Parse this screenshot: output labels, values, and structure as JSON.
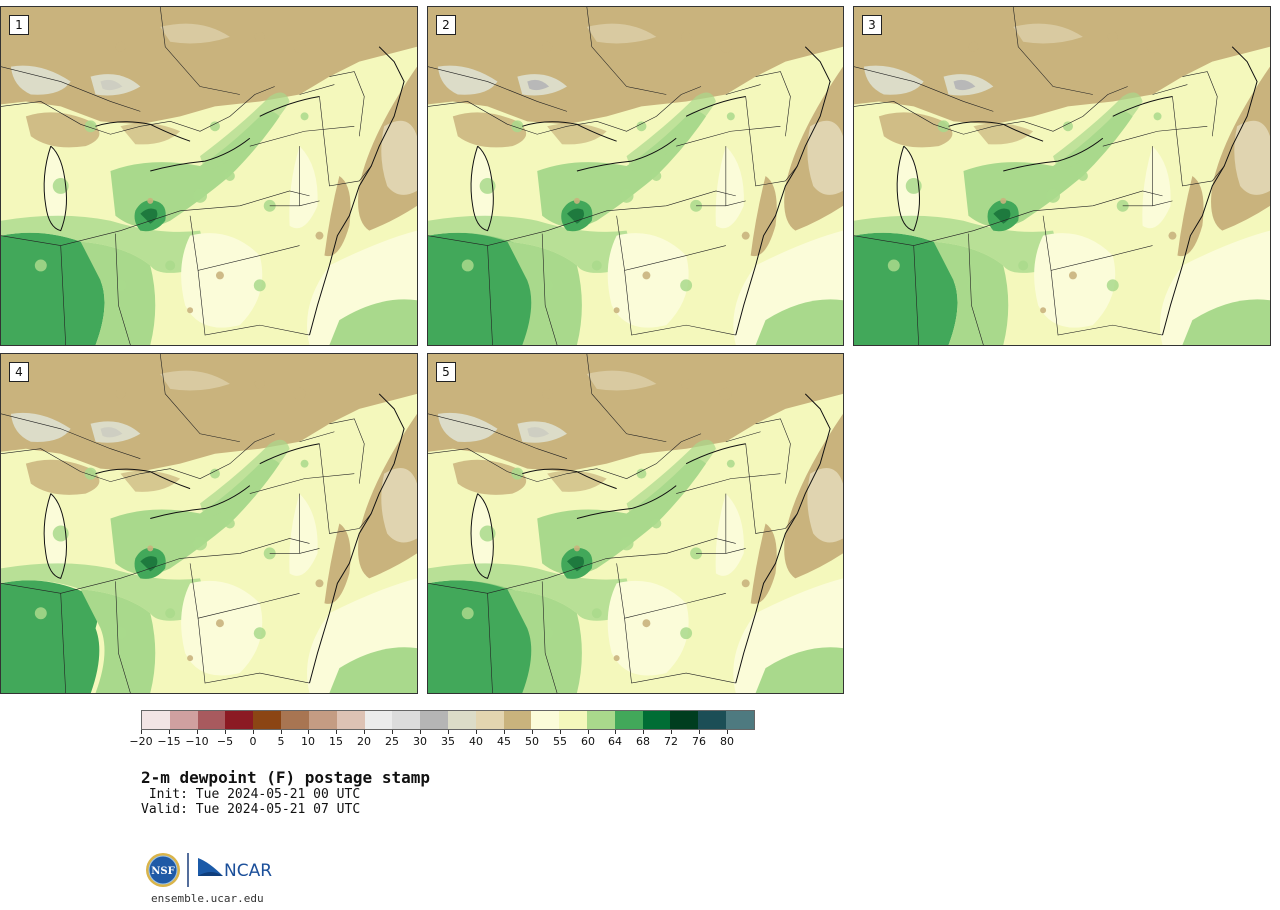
{
  "panels": [
    {
      "label": "1"
    },
    {
      "label": "2"
    },
    {
      "label": "3"
    },
    {
      "label": "4"
    },
    {
      "label": "5"
    }
  ],
  "colorbar": {
    "colors": [
      "#f2e4e4",
      "#d0a0a0",
      "#a85a5e",
      "#8b1a23",
      "#8b4514",
      "#a87552",
      "#c49c83",
      "#ddc2b4",
      "#ececec",
      "#dcdcdc",
      "#b5b5b5",
      "#dcdcc8",
      "#e3d5b0",
      "#c9b37d",
      "#fbfcd9",
      "#f4f8bc",
      "#a9d98c",
      "#42a85a",
      "#006d35",
      "#003d1f",
      "#1c4e56",
      "#4e7a80"
    ],
    "tick_labels": [
      "−20",
      "−15",
      "−10",
      "−5",
      "0",
      "5",
      "10",
      "15",
      "20",
      "25",
      "30",
      "35",
      "40",
      "45",
      "50",
      "55",
      "60",
      "64",
      "68",
      "72",
      "76",
      "80"
    ]
  },
  "title": "2-m dewpoint (F) postage stamp",
  "init_line": " Init: Tue 2024-05-21 00 UTC",
  "valid_line": "Valid: Tue 2024-05-21 07 UTC",
  "logos": {
    "nsf": "NSF",
    "ncar": "NCAR"
  },
  "site": "ensemble.ucar.edu"
}
